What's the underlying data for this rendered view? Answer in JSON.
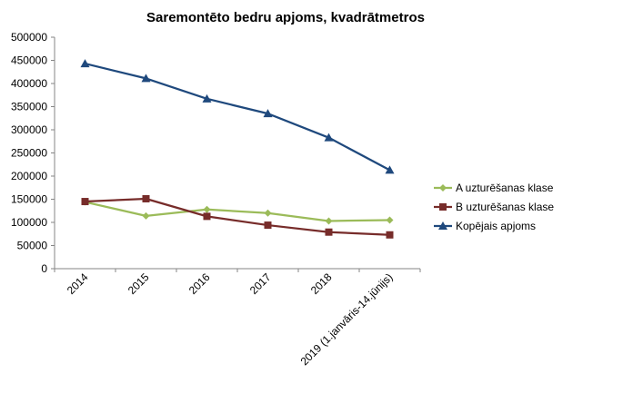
{
  "chart_data": {
    "type": "line",
    "title": "Saremontēto bedru apjoms, kvadrātmetros",
    "xlabel": "",
    "ylabel": "",
    "categories": [
      "2014",
      "2015",
      "2016",
      "2017",
      "2018",
      "2019 (1.janvāris-14.jūnijs)"
    ],
    "ylim": [
      0,
      500000
    ],
    "yticks": [
      "0",
      "50000",
      "100000",
      "150000",
      "200000",
      "250000",
      "300000",
      "350000",
      "400000",
      "450000",
      "500000"
    ],
    "grid": false,
    "legend_position": "right",
    "series": [
      {
        "name": "A uzturēšanas klase",
        "values": [
          144000,
          114000,
          128000,
          120000,
          103000,
          105000
        ],
        "color": "#9bbb59",
        "marker": "diamond"
      },
      {
        "name": "B uzturēšanas klase",
        "values": [
          145000,
          151000,
          113000,
          94000,
          79000,
          73000
        ],
        "color": "#772c2a",
        "marker": "square"
      },
      {
        "name": "Kopējais apjoms",
        "values": [
          443000,
          411000,
          367000,
          335000,
          283000,
          213000
        ],
        "color": "#1f497d",
        "marker": "triangle"
      }
    ]
  }
}
